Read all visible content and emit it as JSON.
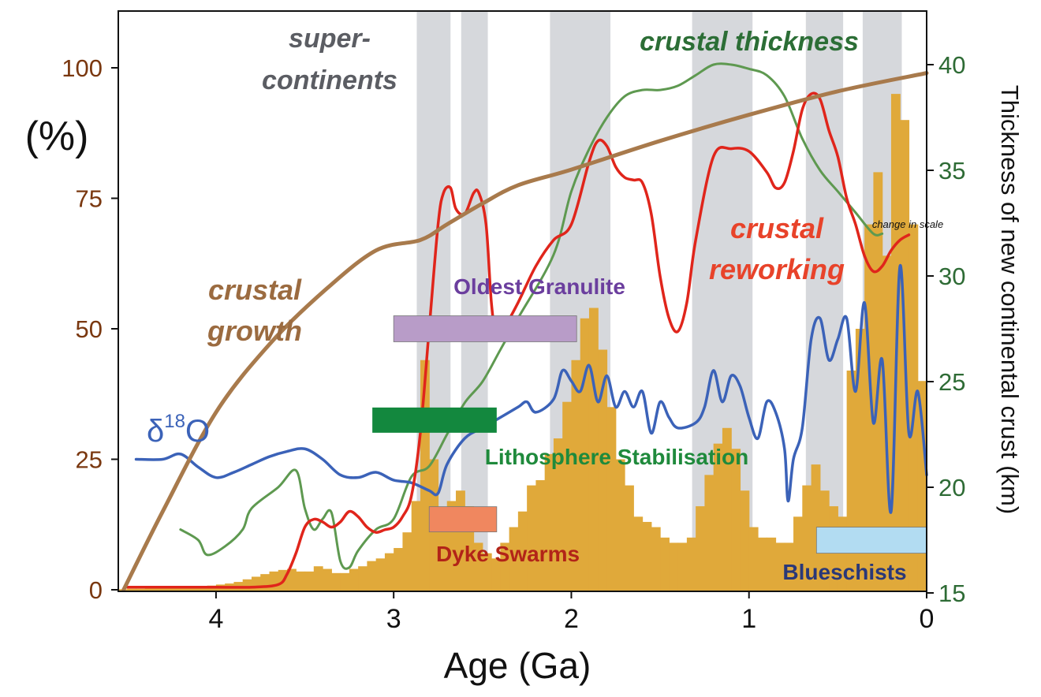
{
  "chart_data": {
    "type": "line",
    "xlabel": "Age (Ga)",
    "ylabel_left": "(%)",
    "ylabel_right": "Thickness of new continental crust (km)",
    "xlim": [
      4.55,
      0
    ],
    "ylim_left": [
      0,
      100
    ],
    "ylim_right": [
      15,
      40
    ],
    "x_ticks": [
      4,
      3,
      2,
      1,
      0
    ],
    "y_ticks_left": [
      0,
      25,
      50,
      75,
      100
    ],
    "y_ticks_right": [
      15,
      20,
      25,
      30,
      35,
      40
    ],
    "colors": {
      "supercontinent_band": "#d6d8dc",
      "histogram": "#e0a93a",
      "crustal_growth": "#a87a4c",
      "crustal_reworking": "#e0251b",
      "crustal_thickness": "#5e9950",
      "d18O": "#3b62b8",
      "left_axis_text": "#7a3810",
      "right_axis_text": "#2e6b35"
    },
    "supercontinent_bands": [
      [
        2.87,
        2.68
      ],
      [
        2.62,
        2.47
      ],
      [
        2.12,
        1.78
      ],
      [
        1.32,
        0.98
      ],
      [
        0.68,
        0.47
      ],
      [
        0.36,
        0.14
      ]
    ],
    "histogram": {
      "x": [
        4.55,
        4.5,
        4.45,
        4.4,
        4.35,
        4.3,
        4.25,
        4.2,
        4.15,
        4.1,
        4.05,
        4.0,
        3.95,
        3.9,
        3.85,
        3.8,
        3.75,
        3.7,
        3.65,
        3.6,
        3.55,
        3.5,
        3.45,
        3.4,
        3.35,
        3.3,
        3.25,
        3.2,
        3.15,
        3.1,
        3.05,
        3.0,
        2.95,
        2.9,
        2.85,
        2.8,
        2.75,
        2.7,
        2.65,
        2.6,
        2.55,
        2.5,
        2.45,
        2.4,
        2.35,
        2.3,
        2.25,
        2.2,
        2.15,
        2.1,
        2.05,
        2.0,
        1.95,
        1.9,
        1.85,
        1.8,
        1.75,
        1.7,
        1.65,
        1.6,
        1.55,
        1.5,
        1.45,
        1.4,
        1.35,
        1.3,
        1.25,
        1.2,
        1.15,
        1.1,
        1.05,
        1.0,
        0.95,
        0.9,
        0.85,
        0.8,
        0.75,
        0.7,
        0.65,
        0.6,
        0.55,
        0.5,
        0.45,
        0.4,
        0.35,
        0.3,
        0.25,
        0.2,
        0.15,
        0.1,
        0.05
      ],
      "values": [
        0.1,
        0.2,
        0.2,
        0.3,
        0.3,
        0.4,
        0.4,
        0.5,
        0.6,
        0.7,
        0.8,
        1.0,
        1.2,
        1.5,
        2.0,
        2.5,
        3.0,
        3.5,
        3.8,
        4.0,
        3.5,
        3.5,
        4.5,
        4.0,
        3.2,
        3.2,
        4.0,
        4.5,
        5.5,
        6.0,
        7.0,
        8.0,
        11.0,
        17.0,
        44.0,
        25.0,
        14.0,
        17.0,
        19.0,
        16.0,
        9.0,
        7.0,
        6.0,
        9.0,
        12.0,
        15.0,
        20.0,
        21.0,
        26.0,
        29.0,
        36.0,
        44.0,
        52.0,
        54.0,
        46.0,
        35.0,
        25.0,
        20.0,
        14.0,
        13.0,
        12.0,
        10.0,
        9.0,
        9.0,
        10.0,
        16.0,
        22.0,
        28.0,
        31.0,
        27.0,
        19.0,
        12.0,
        10.0,
        10.0,
        9.0,
        9.0,
        14.0,
        20.0,
        24.0,
        19.0,
        16.0,
        14.0,
        42.0,
        50.0,
        70.0,
        80.0,
        64.0,
        95.0,
        90.0,
        70.0,
        40.0
      ]
    },
    "series": [
      {
        "name": "crustal growth",
        "axis": "left",
        "x": [
          4.52,
          4.3,
          4.0,
          3.7,
          3.4,
          3.1,
          2.85,
          2.7,
          2.5,
          2.3,
          2.0,
          1.5,
          1.0,
          0.5,
          0.0
        ],
        "y": [
          0,
          15,
          34,
          47,
          57,
          65,
          67,
          70,
          74,
          77.5,
          80.5,
          86,
          91,
          95.5,
          99
        ]
      },
      {
        "name": "crustal reworking",
        "axis": "left",
        "x": [
          4.5,
          4.3,
          4.0,
          3.8,
          3.65,
          3.6,
          3.55,
          3.5,
          3.45,
          3.4,
          3.35,
          3.3,
          3.25,
          3.2,
          3.15,
          3.1,
          3.05,
          3.0,
          2.95,
          2.9,
          2.85,
          2.8,
          2.75,
          2.72,
          2.68,
          2.65,
          2.6,
          2.55,
          2.52,
          2.48,
          2.45,
          2.42,
          2.38,
          2.3,
          2.2,
          2.1,
          2.0,
          1.9,
          1.85,
          1.8,
          1.75,
          1.7,
          1.65,
          1.6,
          1.55,
          1.5,
          1.45,
          1.4,
          1.35,
          1.3,
          1.2,
          1.1,
          1.0,
          0.9,
          0.85,
          0.8,
          0.75,
          0.7,
          0.65,
          0.6,
          0.55,
          0.5,
          0.45,
          0.4,
          0.35,
          0.3,
          0.25,
          0.2,
          0.15,
          0.1
        ],
        "y": [
          0.5,
          0.5,
          0.5,
          0.5,
          1.0,
          3.0,
          7.0,
          12.0,
          13.5,
          13.0,
          12.0,
          13.0,
          15.0,
          14.0,
          12.0,
          11.0,
          11.5,
          12.0,
          14.0,
          18.0,
          30.0,
          50.0,
          70.0,
          76.0,
          77.0,
          73.0,
          72.0,
          76.0,
          76.0,
          70.0,
          55.0,
          48.0,
          50.0,
          55.0,
          62.0,
          67.0,
          70.0,
          82.0,
          86.0,
          85.0,
          81.0,
          79.0,
          78.5,
          78.0,
          72.0,
          60.0,
          52.0,
          49.5,
          55.0,
          67.0,
          83.0,
          84.5,
          84.0,
          80.0,
          77.0,
          78.0,
          84.0,
          92.0,
          95.0,
          94.0,
          88.0,
          83.0,
          75.0,
          70.0,
          64.0,
          61.0,
          62.0,
          65.0,
          67.0,
          68.0
        ]
      },
      {
        "name": "crustal thickness",
        "axis": "right",
        "x": [
          4.2,
          4.1,
          4.05,
          3.95,
          3.85,
          3.8,
          3.65,
          3.55,
          3.5,
          3.45,
          3.4,
          3.35,
          3.3,
          3.25,
          3.2,
          3.1,
          3.0,
          2.9,
          2.8,
          2.7,
          2.6,
          2.5,
          2.4,
          2.3,
          2.1,
          2.0,
          1.9,
          1.8,
          1.7,
          1.6,
          1.5,
          1.4,
          1.3,
          1.2,
          1.1,
          1.0,
          0.9,
          0.8,
          0.7,
          0.6,
          0.5,
          0.4,
          0.3,
          0.25
        ],
        "y": [
          18.0,
          17.5,
          16.8,
          17.2,
          18.0,
          19.0,
          20.0,
          20.8,
          19.0,
          18.0,
          18.5,
          18.8,
          16.5,
          16.2,
          17.0,
          18.0,
          18.5,
          20.5,
          21.0,
          22.5,
          24.0,
          25.0,
          26.5,
          28.0,
          31.0,
          34.0,
          36.0,
          37.5,
          38.5,
          38.8,
          38.8,
          39.0,
          39.5,
          40.0,
          40.0,
          39.8,
          39.5,
          38.5,
          36.5,
          35.0,
          34.0,
          33.0,
          32.0,
          32.0
        ]
      },
      {
        "name": "d18O",
        "axis": "left",
        "x": [
          4.45,
          4.3,
          4.2,
          4.1,
          4.0,
          3.9,
          3.8,
          3.7,
          3.6,
          3.5,
          3.4,
          3.3,
          3.2,
          3.1,
          3.0,
          2.9,
          2.8,
          2.75,
          2.7,
          2.6,
          2.5,
          2.4,
          2.3,
          2.25,
          2.2,
          2.1,
          2.05,
          2.0,
          1.95,
          1.9,
          1.85,
          1.8,
          1.75,
          1.7,
          1.65,
          1.6,
          1.55,
          1.5,
          1.45,
          1.4,
          1.3,
          1.25,
          1.2,
          1.15,
          1.1,
          1.05,
          1.0,
          0.95,
          0.9,
          0.85,
          0.8,
          0.78,
          0.75,
          0.7,
          0.65,
          0.6,
          0.55,
          0.5,
          0.45,
          0.4,
          0.35,
          0.3,
          0.25,
          0.2,
          0.15,
          0.1,
          0.05,
          0.0
        ],
        "y": [
          25.0,
          25.0,
          26.0,
          23.5,
          21.5,
          22.5,
          24.0,
          25.5,
          26.5,
          27.0,
          25.0,
          22.0,
          21.5,
          22.5,
          21.0,
          20.5,
          19.0,
          18.5,
          24.0,
          29.0,
          31.0,
          33.0,
          35.0,
          36.0,
          34.0,
          36.5,
          42.0,
          40.0,
          38.0,
          43.0,
          36.0,
          41.0,
          35.0,
          38.0,
          35.0,
          38.0,
          30.0,
          36.0,
          33.0,
          31.0,
          32.0,
          35.0,
          42.0,
          36.0,
          41.0,
          39.0,
          33.0,
          29.0,
          36.0,
          34.0,
          27.0,
          17.0,
          25.0,
          31.0,
          48.0,
          52.0,
          44.0,
          48.0,
          52.0,
          38.0,
          55.0,
          32.0,
          44.0,
          15.0,
          62.0,
          30.0,
          38.0,
          22.0
        ]
      }
    ],
    "bars": [
      {
        "label": "Oldest Granulite",
        "x_start": 3.0,
        "x_end": 1.97,
        "y_center": 50.0,
        "color": "#b89cc8"
      },
      {
        "label": "Lithosphere Stabilisation",
        "x_start": 3.12,
        "x_end": 2.42,
        "y_center": 32.5,
        "color": "#13883e"
      },
      {
        "label": "Dyke Swarms",
        "x_start": 2.8,
        "x_end": 2.42,
        "y_center": 13.5,
        "color": "#f0875f"
      },
      {
        "label": "Blueschists",
        "x_start": 0.62,
        "x_end": 0.0,
        "y_center": 9.5,
        "color": "#b2dcf2"
      }
    ],
    "annotations": {
      "supercontinents": [
        "super-",
        "continents"
      ],
      "crustal_thickness": "crustal thickness",
      "crustal_growth": [
        "crustal",
        "growth"
      ],
      "crustal_reworking": [
        "crustal",
        "reworking"
      ],
      "d18O_base": "δ",
      "d18O_sup": "18",
      "d18O_tail": "O",
      "change_in_scale": "change in scale",
      "oldest_granulite": "Oldest Granulite",
      "lithosphere": "Lithosphere Stabilisation",
      "dyke_swarms": "Dyke Swarms",
      "blueschists": "Blueschists"
    }
  }
}
